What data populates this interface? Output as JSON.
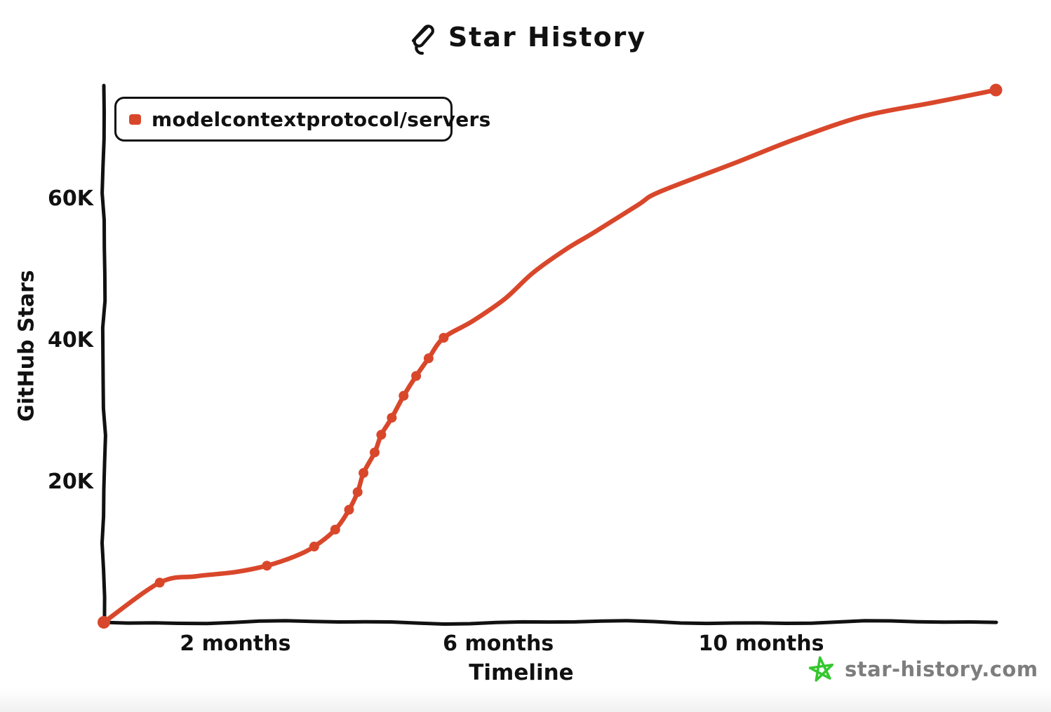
{
  "header": {
    "title": "Star History"
  },
  "legend": {
    "items": [
      {
        "label": "modelcontextprotocol/servers",
        "color": "#d9472b"
      }
    ]
  },
  "watermark": {
    "text": "star-history.com",
    "star_color": "#35c72f",
    "text_color": "#7d7d7d"
  },
  "colors": {
    "axis": "#111111",
    "background": "#ffffff",
    "series_red": "#d9472b"
  },
  "chart_data": {
    "type": "line",
    "title": "Star History",
    "xlabel": "Timeline",
    "ylabel": "GitHub Stars",
    "x_unit": "months",
    "xlim": [
      0,
      13.6
    ],
    "ylim": [
      0,
      76000
    ],
    "grid": false,
    "legend_position": "top-left",
    "x_ticks": [
      {
        "value": 2,
        "label": "2 months"
      },
      {
        "value": 6,
        "label": "6 months"
      },
      {
        "value": 10,
        "label": "10 months"
      }
    ],
    "y_ticks": [
      {
        "value": 20000,
        "label": "20K"
      },
      {
        "value": 40000,
        "label": "40K"
      },
      {
        "value": 60000,
        "label": "60K"
      }
    ],
    "series": [
      {
        "name": "modelcontextprotocol/servers",
        "color": "#d9472b",
        "points": [
          {
            "month": 0.0,
            "stars": 0,
            "marker": true
          },
          {
            "month": 0.85,
            "stars": 5600,
            "marker": true
          },
          {
            "month": 1.4,
            "stars": 6500,
            "marker": false
          },
          {
            "month": 2.0,
            "stars": 7100,
            "marker": false
          },
          {
            "month": 2.48,
            "stars": 8000,
            "marker": true
          },
          {
            "month": 2.9,
            "stars": 9300,
            "marker": false
          },
          {
            "month": 3.2,
            "stars": 10700,
            "marker": true
          },
          {
            "month": 3.52,
            "stars": 13100,
            "marker": true
          },
          {
            "month": 3.73,
            "stars": 15900,
            "marker": true
          },
          {
            "month": 3.86,
            "stars": 18400,
            "marker": true
          },
          {
            "month": 3.95,
            "stars": 21100,
            "marker": true
          },
          {
            "month": 4.12,
            "stars": 24000,
            "marker": true
          },
          {
            "month": 4.22,
            "stars": 26500,
            "marker": true
          },
          {
            "month": 4.38,
            "stars": 28900,
            "marker": true
          },
          {
            "month": 4.56,
            "stars": 32000,
            "marker": true
          },
          {
            "month": 4.75,
            "stars": 34800,
            "marker": true
          },
          {
            "month": 4.94,
            "stars": 37300,
            "marker": true
          },
          {
            "month": 5.17,
            "stars": 40200,
            "marker": true
          },
          {
            "month": 5.6,
            "stars": 42500,
            "marker": false
          },
          {
            "month": 6.1,
            "stars": 45700,
            "marker": false
          },
          {
            "month": 6.53,
            "stars": 49400,
            "marker": false
          },
          {
            "month": 7.03,
            "stars": 52700,
            "marker": false
          },
          {
            "month": 7.46,
            "stars": 55100,
            "marker": false
          },
          {
            "month": 8.13,
            "stars": 59000,
            "marker": false
          },
          {
            "month": 8.45,
            "stars": 60800,
            "marker": false
          },
          {
            "month": 9.6,
            "stars": 64900,
            "marker": false
          },
          {
            "month": 10.5,
            "stars": 68200,
            "marker": false
          },
          {
            "month": 11.55,
            "stars": 71500,
            "marker": false
          },
          {
            "month": 12.6,
            "stars": 73400,
            "marker": false
          },
          {
            "month": 13.57,
            "stars": 75200,
            "marker": true
          }
        ]
      }
    ]
  }
}
